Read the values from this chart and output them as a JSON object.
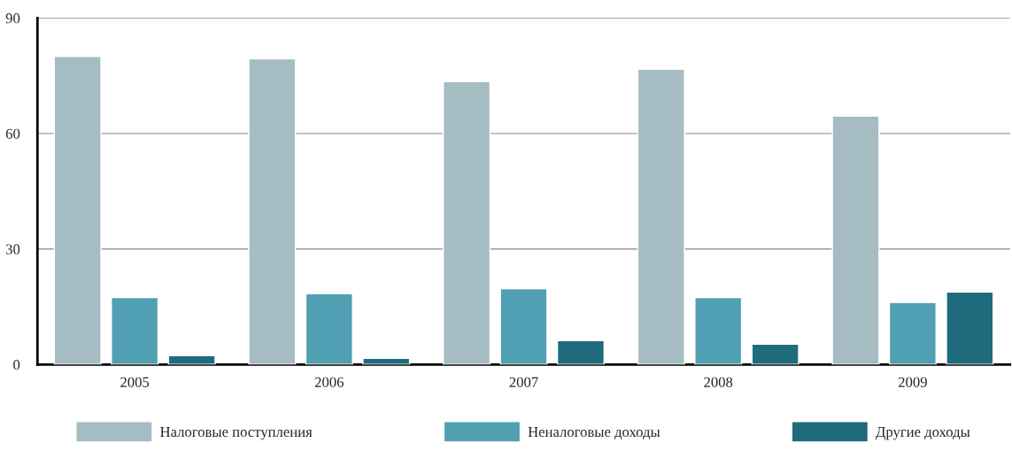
{
  "chart_data": {
    "type": "bar",
    "categories": [
      "2005",
      "2006",
      "2007",
      "2008",
      "2009"
    ],
    "series": [
      {
        "name": "Налоговые поступления",
        "color": "#a5bcc2",
        "values": [
          80,
          79.4,
          73.5,
          76.7,
          64.5
        ]
      },
      {
        "name": "Неналоговые доходы",
        "color": "#519fb2",
        "values": [
          17.4,
          18.4,
          19.7,
          17.4,
          16.1
        ]
      },
      {
        "name": "Другие доходы",
        "color": "#206a7e",
        "values": [
          2.3,
          1.6,
          6.2,
          5.3,
          18.8
        ]
      }
    ],
    "ylim": [
      0,
      90
    ],
    "yticks": [
      0,
      30,
      60,
      90
    ],
    "grid": "y",
    "legend": "bottom"
  }
}
